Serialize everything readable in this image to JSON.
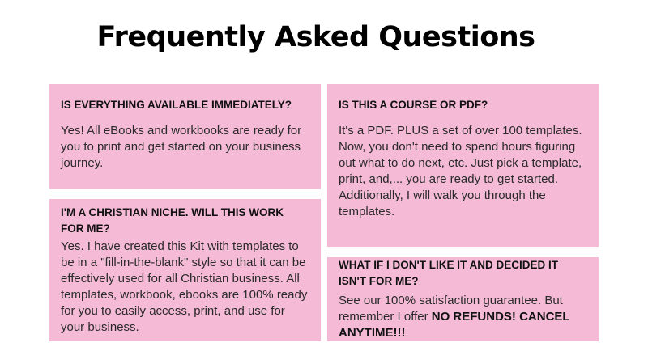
{
  "title": "Frequently Asked Questions",
  "colors": {
    "box_background": "#f4bad6"
  },
  "faqs": [
    {
      "question": "IS EVERYTHING AVAILABLE IMMEDIATELY?",
      "answer": "Yes! All eBooks and workbooks  are ready for you to print and get started on your business journey."
    },
    {
      "question": "I'M A CHRISTIAN NICHE. WILL THIS WORK FOR ME?",
      "answer": "Yes. I have created this Kit with templates to be in a \"fill-in-the-blank\" style so that it can be effectively used for all Christian business. All templates, workbook, ebooks are 100% ready for you to easily access, print, and use for your business."
    },
    {
      "question": "IS THIS A COURSE OR PDF?",
      "answer": "It's a PDF. PLUS a set of over 100 templates. Now, you don't need to spend hours figuring out what to do next, etc. Just pick a template, print,  and,... you are ready to get started. Additionally, I will walk you through the templates."
    },
    {
      "question": "WHAT IF I DON'T LIKE IT AND DECIDED IT ISN'T FOR ME?",
      "answer": "See our 100% satisfaction guarantee. But remember I offer ",
      "answer_bold": "NO REFUNDS! CANCEL ANYTIME!!!"
    }
  ]
}
